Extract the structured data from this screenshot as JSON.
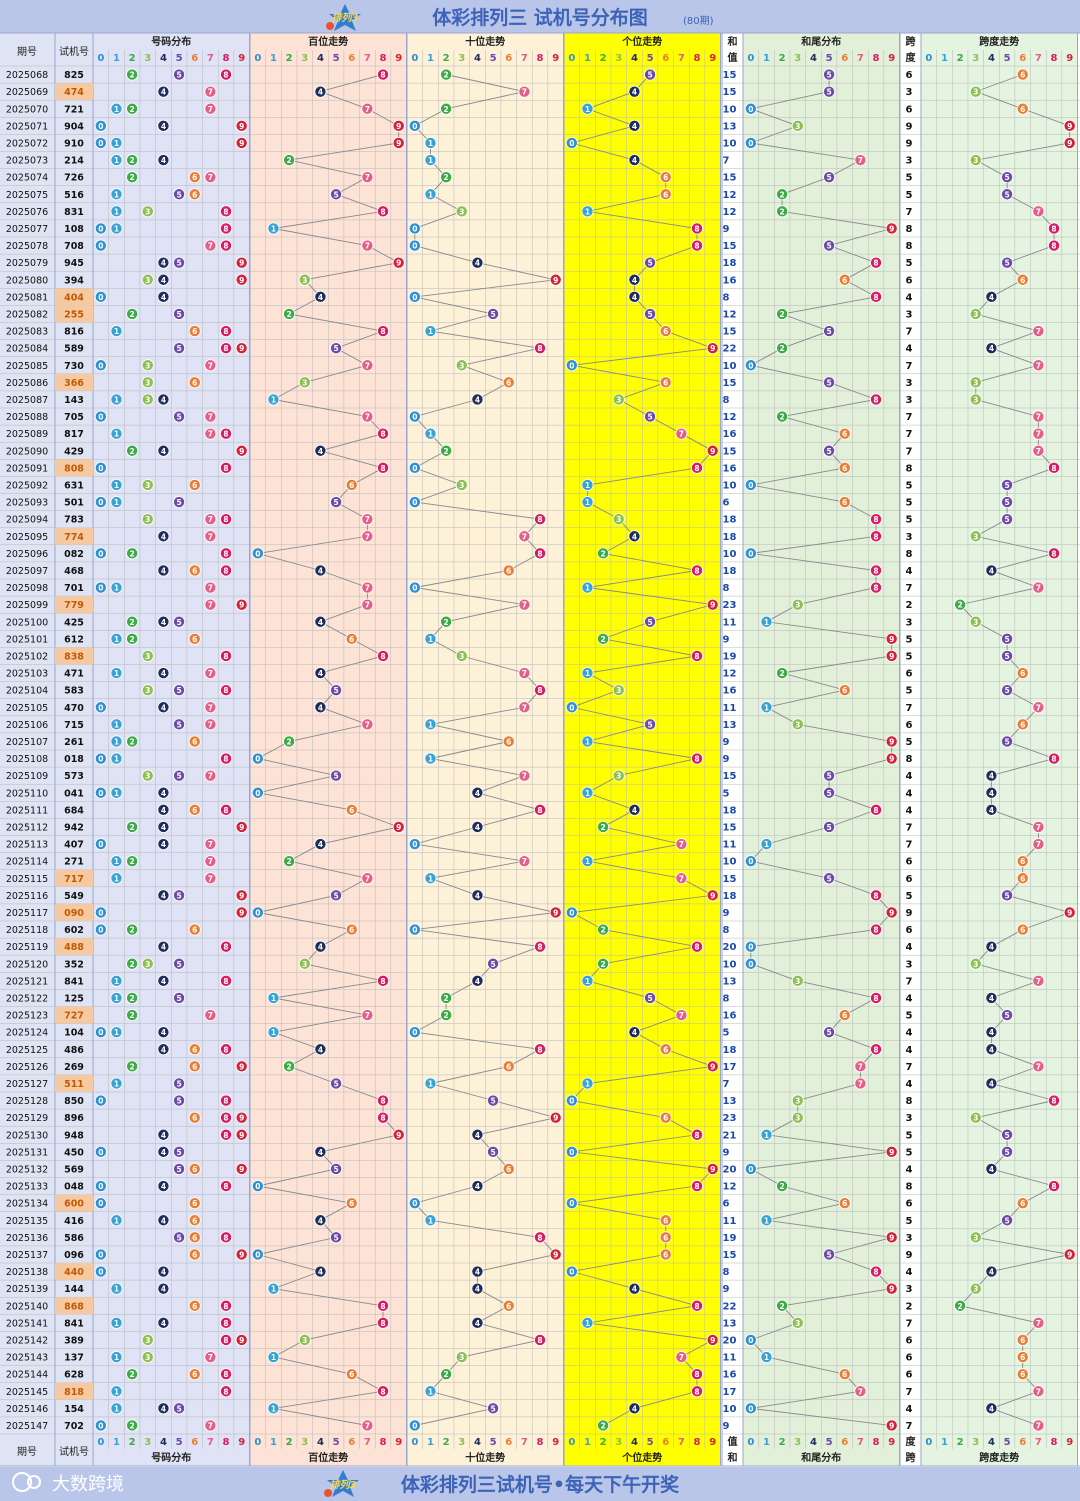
{
  "header": {
    "title": "体彩排列三 试机号分布图",
    "period_note": "(80期)",
    "logo_text": "排列3"
  },
  "footer": {
    "slogan": "体彩排列三试机号•每天下午开奖",
    "brand": "大数跨境",
    "logo_text": "排列3"
  },
  "columns": {
    "issue": "期号",
    "trial": "试机号",
    "dist": "号码分布",
    "hundreds": "百位走势",
    "tens": "十位走势",
    "units": "个位走势",
    "sum_a": "和",
    "sum_b": "值",
    "tail": "和尾分布",
    "span_a": "跨",
    "span_b": "度",
    "span_trend": "跨度走势",
    "digits": [
      "0",
      "1",
      "2",
      "3",
      "4",
      "5",
      "6",
      "7",
      "8",
      "9"
    ]
  },
  "colors": {
    "dist_bg": "#dfe3f5",
    "hundreds_bg": "#fde3d6",
    "tens_bg": "#fdf1d8",
    "units_bg": "#ffff00",
    "tail_bg": "#e2f0da",
    "span_bg": "#e4f4e0",
    "issue_bg": "#dfe4f4",
    "header_bg": "#b9c6ea",
    "title_color": "#3d63b6",
    "highlight_bg": "#f5c9a2",
    "digit_colors": [
      "#2f8fd0",
      "#35a3d6",
      "#3caa46",
      "#8cc152",
      "#1f2d5a",
      "#6c4aa6",
      "#e97d33",
      "#e45e87",
      "#d81b60",
      "#d3213a"
    ]
  },
  "chart_data": {
    "type": "table",
    "series": [
      "hundreds",
      "tens",
      "units",
      "sum",
      "span"
    ],
    "rows": [
      {
        "issue": "2025068",
        "trial": "825",
        "sum": 15,
        "span": 6
      },
      {
        "issue": "2025069",
        "trial": "474",
        "sum": 15,
        "span": 3,
        "hl": true
      },
      {
        "issue": "2025070",
        "trial": "721",
        "sum": 10,
        "span": 6
      },
      {
        "issue": "2025071",
        "trial": "904",
        "sum": 13,
        "span": 9
      },
      {
        "issue": "2025072",
        "trial": "910",
        "sum": 10,
        "span": 9
      },
      {
        "issue": "2025073",
        "trial": "214",
        "sum": 7,
        "span": 3
      },
      {
        "issue": "2025074",
        "trial": "726",
        "sum": 15,
        "span": 5
      },
      {
        "issue": "2025075",
        "trial": "516",
        "sum": 12,
        "span": 5
      },
      {
        "issue": "2025076",
        "trial": "831",
        "sum": 12,
        "span": 7
      },
      {
        "issue": "2025077",
        "trial": "108",
        "sum": 9,
        "span": 8
      },
      {
        "issue": "2025078",
        "trial": "708",
        "sum": 15,
        "span": 8
      },
      {
        "issue": "2025079",
        "trial": "945",
        "sum": 18,
        "span": 5
      },
      {
        "issue": "2025080",
        "trial": "394",
        "sum": 16,
        "span": 6
      },
      {
        "issue": "2025081",
        "trial": "404",
        "sum": 8,
        "span": 4,
        "hl": true
      },
      {
        "issue": "2025082",
        "trial": "255",
        "sum": 12,
        "span": 3,
        "hl": true
      },
      {
        "issue": "2025083",
        "trial": "816",
        "sum": 15,
        "span": 7
      },
      {
        "issue": "2025084",
        "trial": "589",
        "sum": 22,
        "span": 4
      },
      {
        "issue": "2025085",
        "trial": "730",
        "sum": 10,
        "span": 7
      },
      {
        "issue": "2025086",
        "trial": "366",
        "sum": 15,
        "span": 3,
        "hl": true
      },
      {
        "issue": "2025087",
        "trial": "143",
        "sum": 8,
        "span": 3
      },
      {
        "issue": "2025088",
        "trial": "705",
        "sum": 12,
        "span": 7
      },
      {
        "issue": "2025089",
        "trial": "817",
        "sum": 16,
        "span": 7
      },
      {
        "issue": "2025090",
        "trial": "429",
        "sum": 15,
        "span": 7
      },
      {
        "issue": "2025091",
        "trial": "808",
        "sum": 16,
        "span": 8,
        "hl": true
      },
      {
        "issue": "2025092",
        "trial": "631",
        "sum": 10,
        "span": 5
      },
      {
        "issue": "2025093",
        "trial": "501",
        "sum": 6,
        "span": 5
      },
      {
        "issue": "2025094",
        "trial": "783",
        "sum": 18,
        "span": 5
      },
      {
        "issue": "2025095",
        "trial": "774",
        "sum": 18,
        "span": 3,
        "hl": true
      },
      {
        "issue": "2025096",
        "trial": "082",
        "sum": 10,
        "span": 8
      },
      {
        "issue": "2025097",
        "trial": "468",
        "sum": 18,
        "span": 4
      },
      {
        "issue": "2025098",
        "trial": "701",
        "sum": 8,
        "span": 7
      },
      {
        "issue": "2025099",
        "trial": "779",
        "sum": 23,
        "span": 2,
        "hl": true
      },
      {
        "issue": "2025100",
        "trial": "425",
        "sum": 11,
        "span": 3
      },
      {
        "issue": "2025101",
        "trial": "612",
        "sum": 9,
        "span": 5
      },
      {
        "issue": "2025102",
        "trial": "838",
        "sum": 19,
        "span": 5,
        "hl": true
      },
      {
        "issue": "2025103",
        "trial": "471",
        "sum": 12,
        "span": 6
      },
      {
        "issue": "2025104",
        "trial": "583",
        "sum": 16,
        "span": 5
      },
      {
        "issue": "2025105",
        "trial": "470",
        "sum": 11,
        "span": 7
      },
      {
        "issue": "2025106",
        "trial": "715",
        "sum": 13,
        "span": 6
      },
      {
        "issue": "2025107",
        "trial": "261",
        "sum": 9,
        "span": 5
      },
      {
        "issue": "2025108",
        "trial": "018",
        "sum": 9,
        "span": 8
      },
      {
        "issue": "2025109",
        "trial": "573",
        "sum": 15,
        "span": 4
      },
      {
        "issue": "2025110",
        "trial": "041",
        "sum": 5,
        "span": 4
      },
      {
        "issue": "2025111",
        "trial": "684",
        "sum": 18,
        "span": 4
      },
      {
        "issue": "2025112",
        "trial": "942",
        "sum": 15,
        "span": 7
      },
      {
        "issue": "2025113",
        "trial": "407",
        "sum": 11,
        "span": 7
      },
      {
        "issue": "2025114",
        "trial": "271",
        "sum": 10,
        "span": 6
      },
      {
        "issue": "2025115",
        "trial": "717",
        "sum": 15,
        "span": 6,
        "hl": true
      },
      {
        "issue": "2025116",
        "trial": "549",
        "sum": 18,
        "span": 5
      },
      {
        "issue": "2025117",
        "trial": "090",
        "sum": 9,
        "span": 9,
        "hl": true
      },
      {
        "issue": "2025118",
        "trial": "602",
        "sum": 8,
        "span": 6
      },
      {
        "issue": "2025119",
        "trial": "488",
        "sum": 20,
        "span": 4,
        "hl": true
      },
      {
        "issue": "2025120",
        "trial": "352",
        "sum": 10,
        "span": 3
      },
      {
        "issue": "2025121",
        "trial": "841",
        "sum": 13,
        "span": 7
      },
      {
        "issue": "2025122",
        "trial": "125",
        "sum": 8,
        "span": 4
      },
      {
        "issue": "2025123",
        "trial": "727",
        "sum": 16,
        "span": 5,
        "hl": true
      },
      {
        "issue": "2025124",
        "trial": "104",
        "sum": 5,
        "span": 4
      },
      {
        "issue": "2025125",
        "trial": "486",
        "sum": 18,
        "span": 4
      },
      {
        "issue": "2025126",
        "trial": "269",
        "sum": 17,
        "span": 7
      },
      {
        "issue": "2025127",
        "trial": "511",
        "sum": 7,
        "span": 4,
        "hl": true
      },
      {
        "issue": "2025128",
        "trial": "850",
        "sum": 13,
        "span": 8
      },
      {
        "issue": "2025129",
        "trial": "896",
        "sum": 23,
        "span": 3
      },
      {
        "issue": "2025130",
        "trial": "948",
        "sum": 21,
        "span": 5
      },
      {
        "issue": "2025131",
        "trial": "450",
        "sum": 9,
        "span": 5
      },
      {
        "issue": "2025132",
        "trial": "569",
        "sum": 20,
        "span": 4
      },
      {
        "issue": "2025133",
        "trial": "048",
        "sum": 12,
        "span": 8
      },
      {
        "issue": "2025134",
        "trial": "600",
        "sum": 6,
        "span": 6,
        "hl": true
      },
      {
        "issue": "2025135",
        "trial": "416",
        "sum": 11,
        "span": 5
      },
      {
        "issue": "2025136",
        "trial": "586",
        "sum": 19,
        "span": 3
      },
      {
        "issue": "2025137",
        "trial": "096",
        "sum": 15,
        "span": 9
      },
      {
        "issue": "2025138",
        "trial": "440",
        "sum": 8,
        "span": 4,
        "hl": true
      },
      {
        "issue": "2025139",
        "trial": "144",
        "sum": 9,
        "span": 3
      },
      {
        "issue": "2025140",
        "trial": "868",
        "sum": 22,
        "span": 2,
        "hl": true
      },
      {
        "issue": "2025141",
        "trial": "841",
        "sum": 13,
        "span": 7
      },
      {
        "issue": "2025142",
        "trial": "389",
        "sum": 20,
        "span": 6
      },
      {
        "issue": "2025143",
        "trial": "137",
        "sum": 11,
        "span": 6
      },
      {
        "issue": "2025144",
        "trial": "628",
        "sum": 16,
        "span": 6
      },
      {
        "issue": "2025145",
        "trial": "818",
        "sum": 17,
        "span": 7,
        "hl": true
      },
      {
        "issue": "2025146",
        "trial": "154",
        "sum": 10,
        "span": 4
      },
      {
        "issue": "2025147",
        "trial": "702",
        "sum": 9,
        "span": 7
      }
    ]
  }
}
